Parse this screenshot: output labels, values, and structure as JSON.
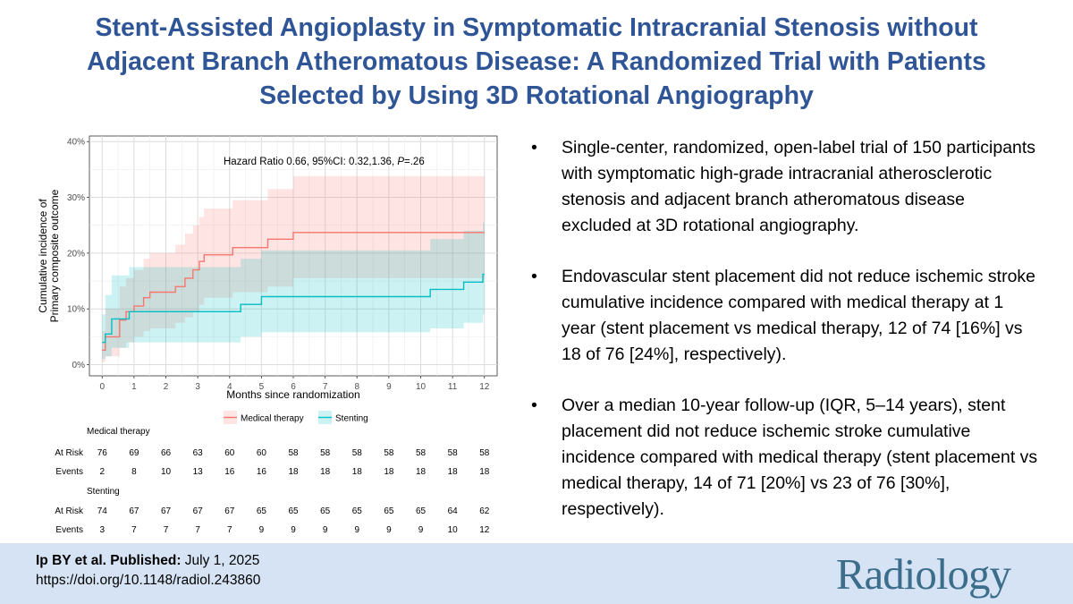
{
  "header": {
    "title_lines": [
      "Stent-Assisted Angioplasty in Symptomatic Intracranial Stenosis without",
      "Adjacent Branch Atheromatous Disease: A Randomized Trial with Patients",
      "Selected by Using 3D Rotational Angiography"
    ]
  },
  "chart_data": {
    "type": "line",
    "subtype": "step-cumulative-incidence",
    "annotation": {
      "prefix": "Hazard Ratio 0.66, 95%CI: 0.32,1.36, ",
      "p_label": "P",
      "p_value": "=.26"
    },
    "xlabel": "Months since randomization",
    "ylabel_lines": [
      "Cumulative incidence of",
      "Primary composite outcome"
    ],
    "xlim": [
      -0.4,
      12.4
    ],
    "ylim": [
      -0.02,
      0.41
    ],
    "x_ticks": [
      0,
      1,
      2,
      3,
      4,
      5,
      6,
      7,
      8,
      9,
      10,
      11,
      12
    ],
    "y_ticks": [
      0,
      0.1,
      0.2,
      0.3,
      0.4
    ],
    "y_tick_labels": [
      "0%",
      "10%",
      "20%",
      "30%",
      "40%"
    ],
    "grid": true,
    "legend": [
      "Medical therapy",
      "Stenting"
    ],
    "series": [
      {
        "name": "Medical therapy",
        "color": "#f8766d",
        "fill": "#f8766d",
        "points": [
          [
            0,
            0.026
          ],
          [
            0.1,
            0.05
          ],
          [
            0.55,
            0.08
          ],
          [
            0.75,
            0.095
          ],
          [
            1,
            0.105
          ],
          [
            1.3,
            0.12
          ],
          [
            1.5,
            0.13
          ],
          [
            2,
            0.13
          ],
          [
            2.3,
            0.14
          ],
          [
            2.6,
            0.155
          ],
          [
            2.85,
            0.17
          ],
          [
            3.05,
            0.185
          ],
          [
            3.2,
            0.197
          ],
          [
            4.1,
            0.21
          ],
          [
            5.15,
            0.21
          ],
          [
            5.2,
            0.225
          ],
          [
            6,
            0.237
          ],
          [
            12,
            0.237
          ]
        ],
        "lower": [
          [
            0,
            0.005
          ],
          [
            0.1,
            0.015
          ],
          [
            0.55,
            0.03
          ],
          [
            0.75,
            0.04
          ],
          [
            1,
            0.05
          ],
          [
            1.3,
            0.06
          ],
          [
            1.5,
            0.065
          ],
          [
            2,
            0.065
          ],
          [
            2.3,
            0.075
          ],
          [
            2.6,
            0.085
          ],
          [
            2.85,
            0.095
          ],
          [
            3.05,
            0.107
          ],
          [
            3.2,
            0.12
          ],
          [
            4.1,
            0.13
          ],
          [
            5.15,
            0.13
          ],
          [
            5.2,
            0.14
          ],
          [
            6,
            0.155
          ],
          [
            12,
            0.155
          ]
        ],
        "upper": [
          [
            0,
            0.06
          ],
          [
            0.1,
            0.1
          ],
          [
            0.55,
            0.14
          ],
          [
            0.75,
            0.155
          ],
          [
            1,
            0.17
          ],
          [
            1.3,
            0.19
          ],
          [
            1.5,
            0.2
          ],
          [
            2,
            0.2
          ],
          [
            2.3,
            0.215
          ],
          [
            2.6,
            0.235
          ],
          [
            2.85,
            0.25
          ],
          [
            3.05,
            0.265
          ],
          [
            3.2,
            0.28
          ],
          [
            4.1,
            0.295
          ],
          [
            5.15,
            0.295
          ],
          [
            5.2,
            0.315
          ],
          [
            6,
            0.338
          ],
          [
            12,
            0.338
          ]
        ]
      },
      {
        "name": "Stenting",
        "color": "#00bfc4",
        "fill": "#00bfc4",
        "points": [
          [
            0,
            0.04
          ],
          [
            0.1,
            0.055
          ],
          [
            0.3,
            0.082
          ],
          [
            0.75,
            0.082
          ],
          [
            0.85,
            0.095
          ],
          [
            4.2,
            0.095
          ],
          [
            4.35,
            0.108
          ],
          [
            5,
            0.122
          ],
          [
            10.25,
            0.122
          ],
          [
            10.3,
            0.135
          ],
          [
            11.3,
            0.135
          ],
          [
            11.35,
            0.148
          ],
          [
            11.9,
            0.148
          ],
          [
            11.95,
            0.162
          ],
          [
            12,
            0.162
          ]
        ],
        "lower": [
          [
            0,
            0.01
          ],
          [
            0.1,
            0.015
          ],
          [
            0.3,
            0.03
          ],
          [
            0.75,
            0.03
          ],
          [
            0.85,
            0.04
          ],
          [
            4.2,
            0.04
          ],
          [
            4.35,
            0.05
          ],
          [
            5,
            0.058
          ],
          [
            10.25,
            0.058
          ],
          [
            10.3,
            0.065
          ],
          [
            11.3,
            0.065
          ],
          [
            11.35,
            0.075
          ],
          [
            11.9,
            0.075
          ],
          [
            11.95,
            0.09
          ],
          [
            12,
            0.09
          ]
        ],
        "upper": [
          [
            0,
            0.09
          ],
          [
            0.1,
            0.125
          ],
          [
            0.3,
            0.16
          ],
          [
            0.75,
            0.16
          ],
          [
            0.85,
            0.175
          ],
          [
            4.2,
            0.175
          ],
          [
            4.35,
            0.19
          ],
          [
            5,
            0.205
          ],
          [
            10.25,
            0.205
          ],
          [
            10.3,
            0.225
          ],
          [
            11.3,
            0.225
          ],
          [
            11.35,
            0.24
          ],
          [
            11.9,
            0.24
          ],
          [
            11.95,
            0.255
          ],
          [
            12,
            0.255
          ]
        ]
      }
    ]
  },
  "risk_table": {
    "groups": [
      {
        "title": "Medical therapy",
        "rows": [
          {
            "label": "At Risk",
            "values": [
              "76",
              "69",
              "66",
              "63",
              "60",
              "60",
              "58",
              "58",
              "58",
              "58",
              "58",
              "58",
              "58"
            ]
          },
          {
            "label": "Events",
            "values": [
              "2",
              "8",
              "10",
              "13",
              "16",
              "16",
              "18",
              "18",
              "18",
              "18",
              "18",
              "18",
              "18"
            ]
          }
        ]
      },
      {
        "title": "Stenting",
        "rows": [
          {
            "label": "At Risk",
            "values": [
              "74",
              "67",
              "67",
              "67",
              "67",
              "65",
              "65",
              "65",
              "65",
              "65",
              "65",
              "64",
              "62"
            ]
          },
          {
            "label": "Events",
            "values": [
              "3",
              "7",
              "7",
              "7",
              "7",
              "9",
              "9",
              "9",
              "9",
              "9",
              "9",
              "10",
              "12"
            ]
          }
        ]
      }
    ]
  },
  "bullets": [
    "Single-center, randomized, open-label trial of 150 participants with symptomatic high-grade intracranial atherosclerotic stenosis and adjacent branch atheromatous disease excluded at 3D rotational angiography.",
    "Endovascular stent placement did not reduce ischemic stroke cumulative incidence compared with medical therapy at 1 year (stent placement vs medical therapy, 12 of 74 [16%] vs 18 of 76 [24%], respectively).",
    "Over a median 10-year follow-up (IQR, 5–14 years), stent placement did not reduce ischemic stroke cumulative incidence compared with medical therapy (stent placement vs medical therapy, 14 of 71 [20%] vs 23 of 76 [30%], respectively)."
  ],
  "bullet_symbol": "•",
  "footer": {
    "authors_label": "Ip BY et al. Published:",
    "published_date": " July 1, 2025",
    "doi": "https://doi.org/10.1148/radiol.243860",
    "logo_text": "Radiology"
  }
}
